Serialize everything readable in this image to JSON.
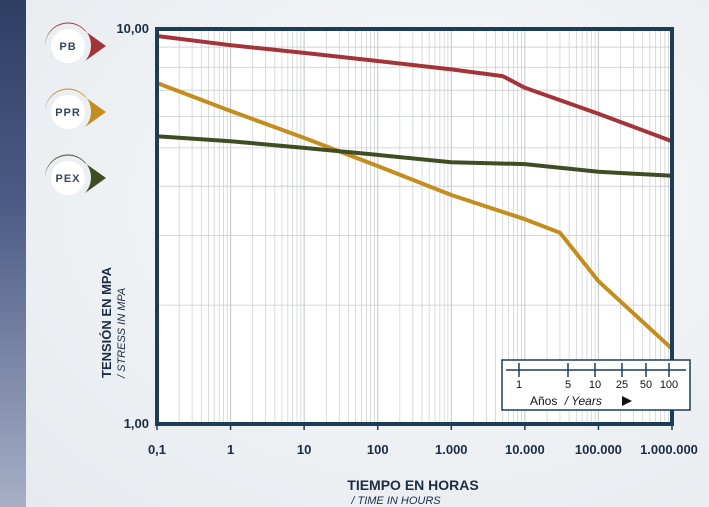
{
  "chart_data": {
    "type": "line",
    "ylabel": "TENSIÓN EN MPA",
    "ylabel_sub": "/ STRESS IN MPA",
    "xlabel": "TIEMPO EN HORAS",
    "xlabel_sub": "/ TIME IN HOURS",
    "x_scale": "log",
    "y_scale": "log",
    "xlim": [
      0.1,
      1000000
    ],
    "ylim": [
      1,
      10
    ],
    "grid": true,
    "x_ticks": [
      {
        "value": 0.1,
        "label": "0,1"
      },
      {
        "value": 1,
        "label": "1"
      },
      {
        "value": 10,
        "label": "10"
      },
      {
        "value": 100,
        "label": "100"
      },
      {
        "value": 1000,
        "label": "1.000"
      },
      {
        "value": 10000,
        "label": "10.000"
      },
      {
        "value": 100000,
        "label": "100.000"
      },
      {
        "value": 1000000,
        "label": "1.000.000"
      }
    ],
    "y_ticks": [
      {
        "value": 10,
        "label": "10,00"
      },
      {
        "value": 1,
        "label": "1,00"
      }
    ],
    "series": [
      {
        "name": "PB",
        "color": "#a3343a",
        "x": [
          0.1,
          1,
          10,
          100,
          1000,
          5000,
          10000,
          100000,
          1000000
        ],
        "y": [
          9.6,
          9.1,
          8.7,
          8.3,
          7.9,
          7.6,
          7.1,
          6.1,
          5.2
        ]
      },
      {
        "name": "PPR",
        "color": "#c48e1e",
        "x": [
          0.1,
          1,
          10,
          100,
          1000,
          10000,
          30000,
          100000,
          1000000
        ],
        "y": [
          7.3,
          6.2,
          5.3,
          4.5,
          3.8,
          3.3,
          3.05,
          2.3,
          1.55
        ]
      },
      {
        "name": "PEX",
        "color": "#3f4d24",
        "x": [
          0.1,
          1,
          10,
          100,
          1000,
          10000,
          100000,
          1000000
        ],
        "y": [
          5.35,
          5.2,
          5.0,
          4.8,
          4.6,
          4.55,
          4.35,
          4.25
        ]
      }
    ],
    "years_axis": {
      "label": "Años",
      "label_sub": "/ Years",
      "ticks": [
        "1",
        "5",
        "10",
        "25",
        "50",
        "100"
      ]
    }
  },
  "legend": [
    {
      "label": "PB",
      "color": "#a3343a"
    },
    {
      "label": "PPR",
      "color": "#c48e1e"
    },
    {
      "label": "PEX",
      "color": "#3f4d24"
    }
  ],
  "colors": {
    "frame": "#1d3d57",
    "grid": "#c7cbd0"
  }
}
